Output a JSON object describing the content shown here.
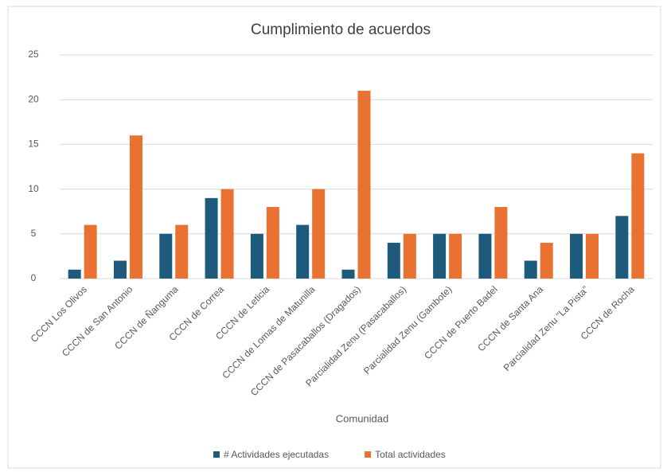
{
  "chart_data": {
    "type": "bar",
    "title": "Cumplimiento de acuerdos",
    "x_label": "Comunidad",
    "categories": [
      "CCCN Los Olivos",
      "CCCN de San Antonio",
      "CCCN de Ñanguma",
      "CCCN de Correa",
      "CCCN de Leticia",
      "CCCN de Lomas  de Matunilla",
      "CCCN de Pasacaballos (Dragados)",
      "Parcialidad Zenu (Pasacaballos)",
      "Parcialidad Zenu (Gambote)",
      "CCCN de Puerto Badel",
      "CCCN de Santa Ana",
      "Parcialidad Zenu \"La Pista\"",
      "CCCN de Rocha"
    ],
    "series": [
      {
        "name": "# Actividades ejecutadas",
        "color": "#1d5a7c",
        "values": [
          1,
          2,
          5,
          9,
          5,
          6,
          1,
          4,
          5,
          5,
          2,
          5,
          7
        ]
      },
      {
        "name": "Total actividades",
        "color": "#e97132",
        "values": [
          6,
          16,
          6,
          10,
          8,
          10,
          21,
          5,
          5,
          8,
          4,
          5,
          14
        ]
      }
    ],
    "ylim": [
      0,
      25
    ],
    "yticks": [
      0,
      5,
      10,
      15,
      20,
      25
    ],
    "grid": true,
    "legend": "bottom"
  }
}
